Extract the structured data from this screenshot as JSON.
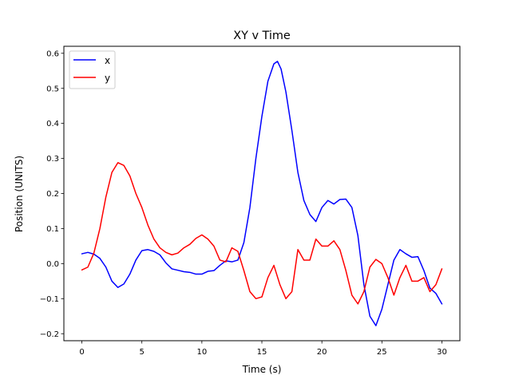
{
  "chart_data": {
    "type": "line",
    "title": "XY v Time",
    "xlabel": "Time (s)",
    "ylabel": "Position (UNITS)",
    "xlim": [
      -1.5,
      31.5
    ],
    "ylim": [
      -0.22,
      0.62
    ],
    "xticks": [
      0,
      5,
      10,
      15,
      20,
      25,
      30
    ],
    "yticks": [
      -0.2,
      -0.1,
      0.0,
      0.1,
      0.2,
      0.3,
      0.4,
      0.5,
      0.6
    ],
    "xtick_labels": [
      "0",
      "5",
      "10",
      "15",
      "20",
      "25",
      "30"
    ],
    "ytick_labels": [
      "−0.2",
      "−0.1",
      "0.0",
      "0.1",
      "0.2",
      "0.3",
      "0.4",
      "0.5",
      "0.6"
    ],
    "grid": false,
    "legend": "top-left",
    "series": [
      {
        "name": "x",
        "color": "#0000ff",
        "points": [
          [
            0,
            0.028
          ],
          [
            0.5,
            0.032
          ],
          [
            1,
            0.027
          ],
          [
            1.5,
            0.015
          ],
          [
            2,
            -0.01
          ],
          [
            2.5,
            -0.05
          ],
          [
            3,
            -0.068
          ],
          [
            3.5,
            -0.058
          ],
          [
            4,
            -0.03
          ],
          [
            4.5,
            0.01
          ],
          [
            5,
            0.037
          ],
          [
            5.5,
            0.04
          ],
          [
            6,
            0.035
          ],
          [
            6.5,
            0.025
          ],
          [
            7,
            0.002
          ],
          [
            7.5,
            -0.015
          ],
          [
            8,
            -0.019
          ],
          [
            8.5,
            -0.023
          ],
          [
            9,
            -0.025
          ],
          [
            9.5,
            -0.03
          ],
          [
            10,
            -0.03
          ],
          [
            10.5,
            -0.022
          ],
          [
            11,
            -0.02
          ],
          [
            11.5,
            -0.005
          ],
          [
            12,
            0.008
          ],
          [
            12.5,
            0.005
          ],
          [
            13,
            0.01
          ],
          [
            13.5,
            0.06
          ],
          [
            14,
            0.16
          ],
          [
            14.5,
            0.3
          ],
          [
            15,
            0.42
          ],
          [
            15.5,
            0.52
          ],
          [
            16,
            0.57
          ],
          [
            16.3,
            0.577
          ],
          [
            16.6,
            0.555
          ],
          [
            17,
            0.49
          ],
          [
            17.5,
            0.38
          ],
          [
            18,
            0.26
          ],
          [
            18.5,
            0.18
          ],
          [
            19,
            0.14
          ],
          [
            19.5,
            0.12
          ],
          [
            20,
            0.16
          ],
          [
            20.5,
            0.18
          ],
          [
            21,
            0.17
          ],
          [
            21.5,
            0.183
          ],
          [
            22,
            0.184
          ],
          [
            22.5,
            0.16
          ],
          [
            23,
            0.08
          ],
          [
            23.5,
            -0.06
          ],
          [
            24,
            -0.15
          ],
          [
            24.5,
            -0.177
          ],
          [
            25,
            -0.13
          ],
          [
            25.5,
            -0.06
          ],
          [
            26,
            0.01
          ],
          [
            26.5,
            0.04
          ],
          [
            27,
            0.028
          ],
          [
            27.5,
            0.018
          ],
          [
            28,
            0.02
          ],
          [
            28.5,
            -0.02
          ],
          [
            29,
            -0.07
          ],
          [
            29.5,
            -0.085
          ],
          [
            30,
            -0.115
          ]
        ]
      },
      {
        "name": "y",
        "color": "#ff0000",
        "points": [
          [
            0,
            -0.018
          ],
          [
            0.5,
            -0.01
          ],
          [
            1,
            0.03
          ],
          [
            1.5,
            0.1
          ],
          [
            2,
            0.19
          ],
          [
            2.5,
            0.26
          ],
          [
            3,
            0.288
          ],
          [
            3.5,
            0.28
          ],
          [
            4,
            0.25
          ],
          [
            4.5,
            0.2
          ],
          [
            5,
            0.16
          ],
          [
            5.5,
            0.11
          ],
          [
            6,
            0.07
          ],
          [
            6.5,
            0.045
          ],
          [
            7,
            0.032
          ],
          [
            7.5,
            0.025
          ],
          [
            8,
            0.03
          ],
          [
            8.5,
            0.045
          ],
          [
            9,
            0.055
          ],
          [
            9.5,
            0.072
          ],
          [
            10,
            0.082
          ],
          [
            10.5,
            0.07
          ],
          [
            11,
            0.05
          ],
          [
            11.5,
            0.01
          ],
          [
            12,
            0.005
          ],
          [
            12.5,
            0.045
          ],
          [
            13,
            0.035
          ],
          [
            13.5,
            -0.02
          ],
          [
            14,
            -0.08
          ],
          [
            14.5,
            -0.1
          ],
          [
            15,
            -0.095
          ],
          [
            15.5,
            -0.04
          ],
          [
            16,
            -0.005
          ],
          [
            16.5,
            -0.06
          ],
          [
            17,
            -0.1
          ],
          [
            17.5,
            -0.08
          ],
          [
            18,
            0.04
          ],
          [
            18.5,
            0.01
          ],
          [
            19,
            0.01
          ],
          [
            19.5,
            0.07
          ],
          [
            20,
            0.05
          ],
          [
            20.5,
            0.05
          ],
          [
            21,
            0.065
          ],
          [
            21.5,
            0.04
          ],
          [
            22,
            -0.02
          ],
          [
            22.5,
            -0.09
          ],
          [
            23,
            -0.115
          ],
          [
            23.5,
            -0.08
          ],
          [
            24,
            -0.01
          ],
          [
            24.5,
            0.012
          ],
          [
            25,
            0.0
          ],
          [
            25.5,
            -0.04
          ],
          [
            26,
            -0.09
          ],
          [
            26.5,
            -0.04
          ],
          [
            27,
            -0.005
          ],
          [
            27.5,
            -0.05
          ],
          [
            28,
            -0.05
          ],
          [
            28.5,
            -0.04
          ],
          [
            29,
            -0.08
          ],
          [
            29.5,
            -0.06
          ],
          [
            30,
            -0.015
          ]
        ]
      }
    ]
  }
}
